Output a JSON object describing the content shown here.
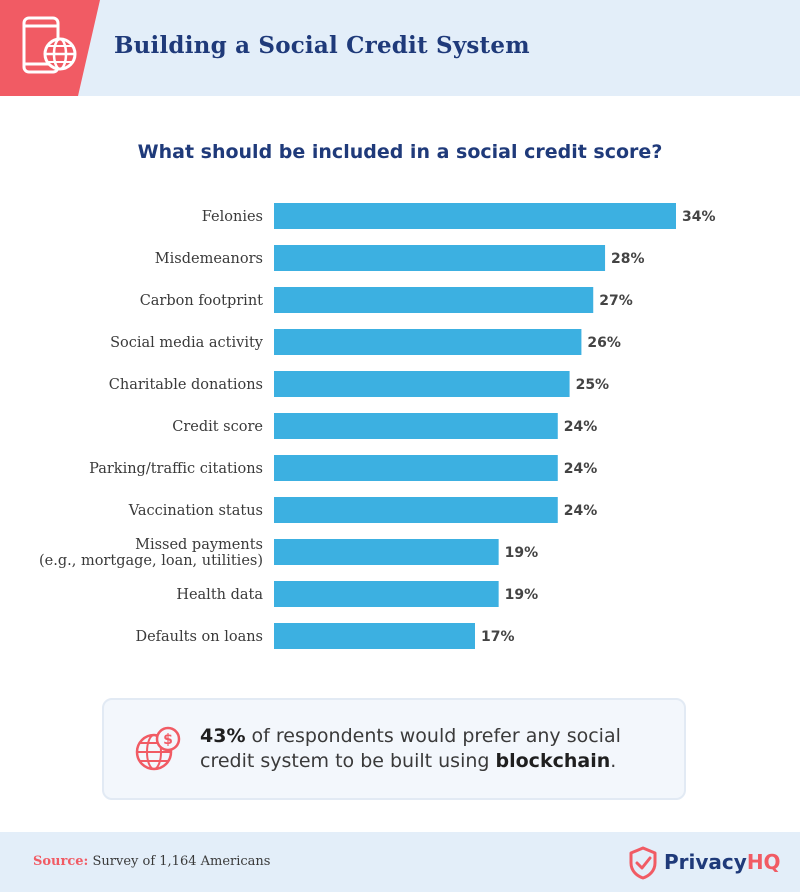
{
  "header": {
    "title": "Building a Social Credit System",
    "icon": "mobile-globe-icon"
  },
  "chart_data": {
    "type": "bar",
    "orientation": "horizontal",
    "title": "What should be included in a social credit score?",
    "categories": [
      [
        "Felonies"
      ],
      [
        "Misdemeanors"
      ],
      [
        "Carbon footprint"
      ],
      [
        "Social media activity"
      ],
      [
        "Charitable donations"
      ],
      [
        "Credit score"
      ],
      [
        "Parking/traffic citations"
      ],
      [
        "Vaccination status"
      ],
      [
        "Missed payments",
        "(e.g., mortgage, loan, utilities)"
      ],
      [
        "Health data"
      ],
      [
        "Defaults on loans"
      ]
    ],
    "values": [
      34,
      28,
      27,
      26,
      25,
      24,
      24,
      24,
      19,
      19,
      17
    ],
    "value_suffix": "%",
    "bar_color": "#3cb0e1"
  },
  "callout": {
    "icon": "globe-dollar-icon",
    "stat": "43%",
    "text_before": " of respondents would prefer any social credit system to be built using ",
    "highlight": "blockchain",
    "text_after": "."
  },
  "footer": {
    "source_label": "Source:",
    "source_text": " Survey of 1,164 Americans",
    "brand_name_part1": "Privacy",
    "brand_name_part2": "HQ",
    "brand_icon": "shield-check-icon"
  },
  "colors": {
    "accent": "#f15b64",
    "navy": "#1f3a7a",
    "bar": "#3cb0e1",
    "band": "#e3eef9"
  }
}
